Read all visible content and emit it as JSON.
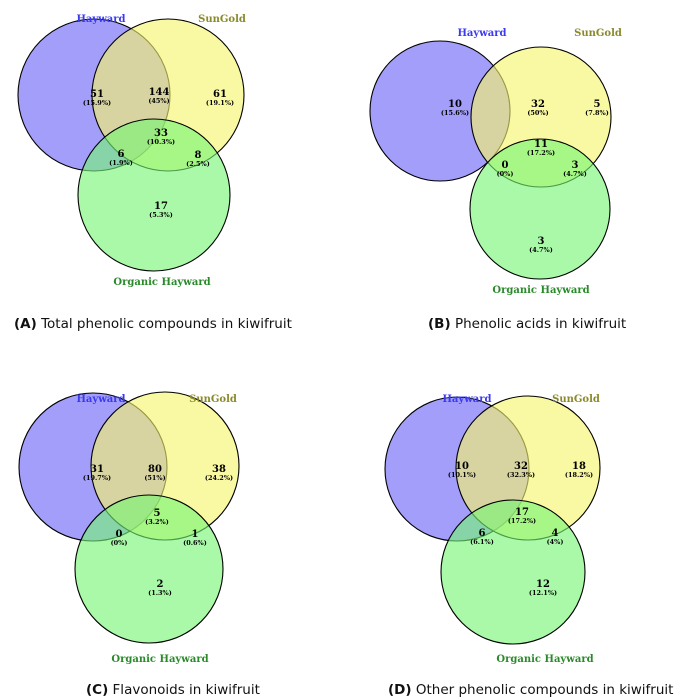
{
  "colors": {
    "hayward": "#6a62f6",
    "sungold": "#f7f56a",
    "organic": "#74f574",
    "hayward_label": "#3a3af0",
    "sungold_label": "#8a8a2a",
    "organic_label": "#2a8a2a"
  },
  "panels": [
    {
      "letter": "(A)",
      "caption": "Total phenolic compounds in kiwifruit",
      "labels": {
        "hayward": "Hayward",
        "sungold": "SunGold",
        "organic": "Organic Hayward"
      },
      "regions": {
        "h": {
          "count": "51",
          "pct": "(15.9%)"
        },
        "hs": {
          "count": "144",
          "pct": "(45%)"
        },
        "s": {
          "count": "61",
          "pct": "(19.1%)"
        },
        "hso": {
          "count": "33",
          "pct": "(10.3%)"
        },
        "ho": {
          "count": "6",
          "pct": "(1.9%)"
        },
        "so": {
          "count": "8",
          "pct": "(2.5%)"
        },
        "o": {
          "count": "17",
          "pct": "(5.3%)"
        }
      }
    },
    {
      "letter": "(B)",
      "caption": "Phenolic acids in kiwifruit",
      "labels": {
        "hayward": "Hayward",
        "sungold": "SunGold",
        "organic": "Organic Hayward"
      },
      "regions": {
        "h": {
          "count": "10",
          "pct": "(15.6%)"
        },
        "hs": {
          "count": "32",
          "pct": "(50%)"
        },
        "s": {
          "count": "5",
          "pct": "(7.8%)"
        },
        "hso": {
          "count": "11",
          "pct": "(17.2%)"
        },
        "ho": {
          "count": "0",
          "pct": "(0%)"
        },
        "so": {
          "count": "3",
          "pct": "(4.7%)"
        },
        "o": {
          "count": "3",
          "pct": "(4.7%)"
        }
      }
    },
    {
      "letter": "(C)",
      "caption": "Flavonoids in kiwifruit",
      "labels": {
        "hayward": "Hayward",
        "sungold": "SunGold",
        "organic": "Organic Hayward"
      },
      "regions": {
        "h": {
          "count": "31",
          "pct": "(19.7%)"
        },
        "hs": {
          "count": "80",
          "pct": "(51%)"
        },
        "s": {
          "count": "38",
          "pct": "(24.2%)"
        },
        "hso": {
          "count": "5",
          "pct": "(3.2%)"
        },
        "ho": {
          "count": "0",
          "pct": "(0%)"
        },
        "so": {
          "count": "1",
          "pct": "(0.6%)"
        },
        "o": {
          "count": "2",
          "pct": "(1.3%)"
        }
      }
    },
    {
      "letter": "(D)",
      "caption": "Other phenolic compounds in kiwifruit",
      "labels": {
        "hayward": "Hayward",
        "sungold": "SunGold",
        "organic": "Organic Hayward"
      },
      "regions": {
        "h": {
          "count": "10",
          "pct": "(10.1%)"
        },
        "hs": {
          "count": "32",
          "pct": "(32.3%)"
        },
        "s": {
          "count": "18",
          "pct": "(18.2%)"
        },
        "hso": {
          "count": "17",
          "pct": "(17.2%)"
        },
        "ho": {
          "count": "6",
          "pct": "(6.1%)"
        },
        "so": {
          "count": "4",
          "pct": "(4%)"
        },
        "o": {
          "count": "12",
          "pct": "(12.1%)"
        }
      }
    }
  ]
}
